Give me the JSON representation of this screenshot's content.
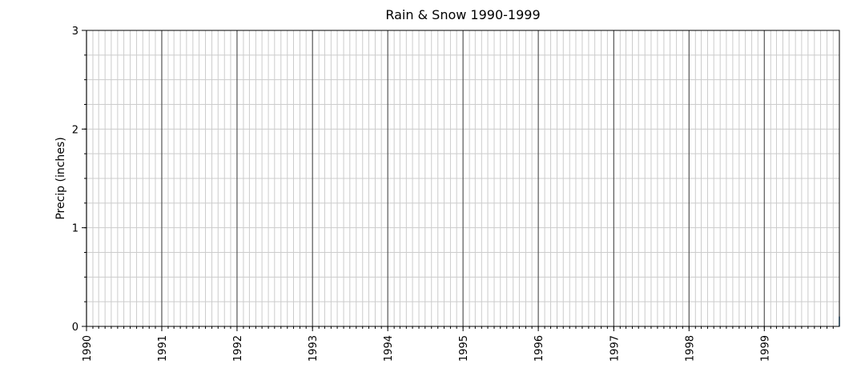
{
  "chart_data": {
    "type": "line",
    "title": "Rain & Snow 1990-1999",
    "xlabel": "",
    "ylabel": "Precip (inches)",
    "xlim": [
      "1990-01-01",
      "1999-12-31"
    ],
    "ylim": [
      0,
      3
    ],
    "x_ticks": [
      "1990",
      "1991",
      "1992",
      "1993",
      "1994",
      "1995",
      "1996",
      "1997",
      "1998",
      "1999"
    ],
    "y_ticks": [
      "0",
      "1",
      "2",
      "3"
    ],
    "y_minor_step": 0.25,
    "x_minor": "monthly",
    "grid": true,
    "series": [
      {
        "color": "#1f77b4",
        "x": [
          "1999-12-31"
        ],
        "values": [
          0.1
        ]
      }
    ]
  }
}
